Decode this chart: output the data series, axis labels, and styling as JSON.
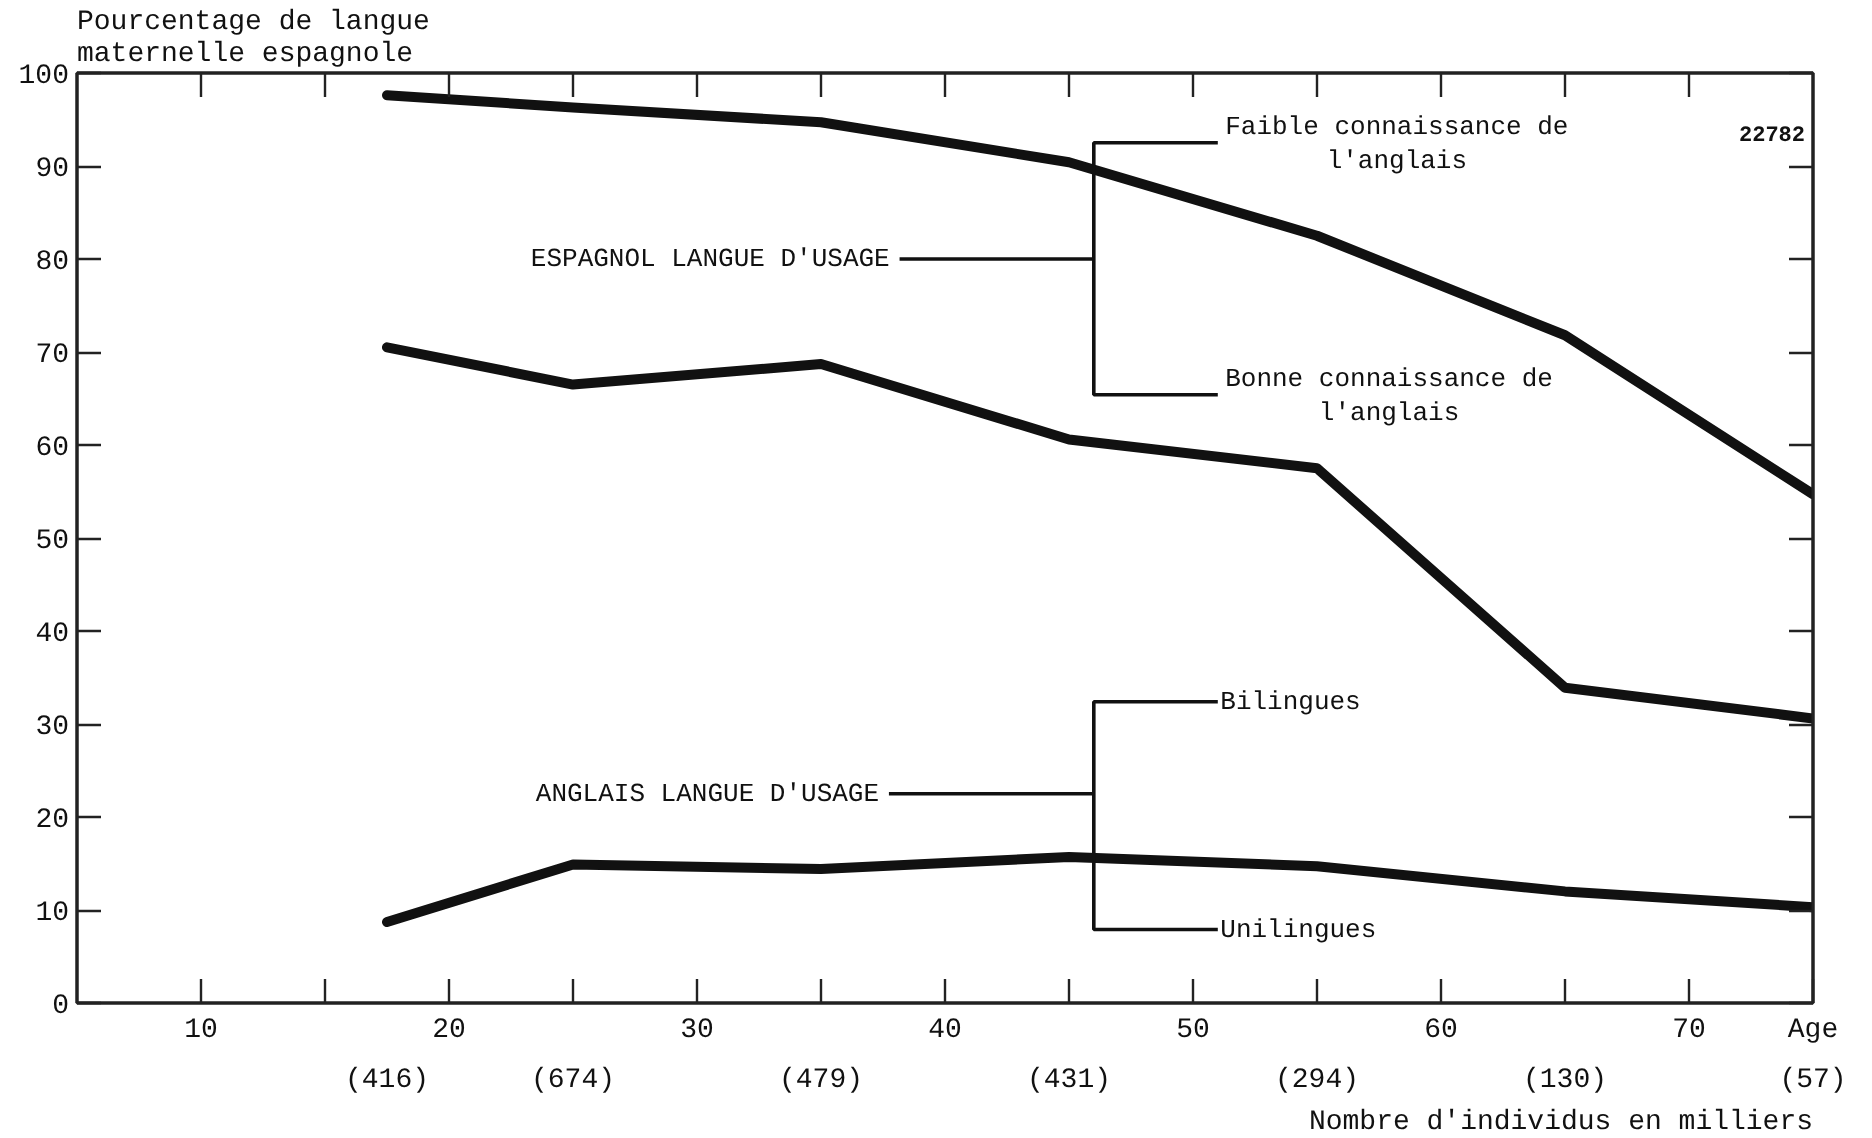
{
  "chart_data": {
    "type": "line",
    "ylabel": "Pourcentage de langue maternelle espagnole",
    "xlabel": "Age",
    "x": [
      17.5,
      25,
      35,
      45,
      55,
      65,
      75
    ],
    "series": [
      {
        "color": "#111111",
        "values": [
          97.6,
          96.3,
          94.7,
          90.4,
          82.5,
          71.8,
          54.7
        ]
      },
      {
        "color": "#111111",
        "values": [
          70.5,
          66.5,
          68.7,
          60.6,
          57.5,
          33.9,
          30.6
        ]
      },
      {
        "color": "#111111",
        "values": [
          8.7,
          14.9,
          14.4,
          15.7,
          14.7,
          12,
          10.3
        ]
      }
    ],
    "xlim": [
      5,
      75
    ],
    "ylim": [
      0,
      100
    ],
    "xticks": [
      10,
      {
        "value": 15,
        "label": null
      },
      20,
      {
        "value": 25,
        "label": null
      },
      30,
      {
        "value": 35,
        "label": null
      },
      40,
      {
        "value": 45,
        "label": null
      },
      50,
      {
        "value": 55,
        "label": null
      },
      60,
      {
        "value": 65,
        "label": null
      },
      70
    ],
    "yticks": [
      0,
      10,
      20,
      30,
      40,
      50,
      60,
      70,
      80,
      90,
      100
    ],
    "line_style": "solid",
    "annotations": [
      "ESPAGNOL LANGUE D'USAGE",
      "Faible connaissance de l'anglais",
      "Bonne connaissance de l'anglais",
      "ANGLAIS LANGUE D'USAGE",
      "Bilingues",
      "Unilingues",
      "(416)",
      "(674)",
      "(479)",
      "(431)",
      "(294)",
      "(130)",
      "(57)",
      "Nombre d'individus en milliers",
      "22782"
    ]
  }
}
